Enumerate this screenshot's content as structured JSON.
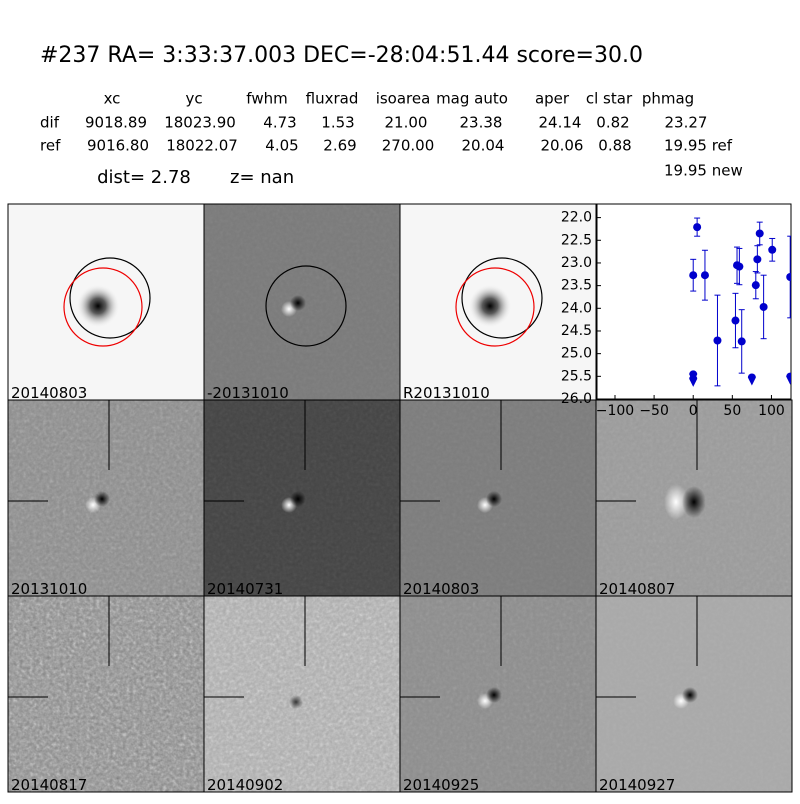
{
  "header": {
    "title": "#237   RA= 3:33:37.003 DEC=-28:04:51.44      score=30.0",
    "columns": [
      "xc",
      "yc",
      "fwhm",
      "fluxrad",
      "isoarea",
      "mag auto",
      "aper",
      "cl star",
      "phmag"
    ],
    "rows": [
      {
        "label": "dif",
        "cells": [
          "9018.89",
          "18023.90",
          "4.73",
          "1.53",
          "21.00",
          "23.38",
          "24.14",
          "0.82",
          "23.27"
        ]
      },
      {
        "label": "ref",
        "cells": [
          "9016.80",
          "18022.07",
          "4.05",
          "2.69",
          "270.00",
          "20.04",
          "20.06",
          "0.88",
          "19.95 ref"
        ]
      }
    ],
    "extra": "19.95 new",
    "dist": "dist=  2.78",
    "z": "z=   nan"
  },
  "panels": [
    {
      "label": "20140803"
    },
    {
      "label": "-20131010"
    },
    {
      "label": "R20131010"
    },
    {
      "label": "20131010"
    },
    {
      "label": "20140731"
    },
    {
      "label": "20140803",
      "color": "#ff0000"
    },
    {
      "label": "20140807"
    },
    {
      "label": "20140817"
    },
    {
      "label": "20140902"
    },
    {
      "label": "20140925"
    },
    {
      "label": "20140927"
    }
  ],
  "chart_data": {
    "type": "errorbar",
    "xlim": [
      -123,
      125
    ],
    "ylim": [
      21.7,
      26
    ],
    "y_inverted": true,
    "xticks": [
      {
        "value": -100,
        "label": "−100"
      },
      {
        "value": -50,
        "label": "−50"
      },
      0,
      50,
      100
    ],
    "yticks": [
      {
        "value": 22,
        "label": "22.0"
      },
      {
        "value": 22.5,
        "label": "22.5"
      },
      {
        "value": 23,
        "label": "23.0"
      },
      {
        "value": 23.5,
        "label": "23.5"
      },
      {
        "value": 24,
        "label": "24.0"
      },
      {
        "value": 24.5,
        "label": "24.5"
      },
      {
        "value": 25,
        "label": "25.0"
      },
      {
        "value": 25.5,
        "label": "25.5"
      },
      {
        "value": 26,
        "label": "26.0"
      }
    ],
    "color": "#0000cc",
    "detections": {
      "x": [
        0,
        5,
        15,
        31,
        54,
        56,
        59,
        62,
        80,
        82,
        85,
        90,
        101,
        124
      ],
      "values": [
        23.27,
        22.21,
        23.27,
        24.71,
        24.27,
        23.05,
        23.08,
        24.73,
        23.49,
        22.92,
        22.35,
        23.97,
        22.71,
        23.31
      ],
      "errors": [
        0.35,
        0.2,
        0.55,
        1.0,
        0.6,
        0.4,
        0.4,
        0.7,
        0.3,
        0.3,
        0.25,
        0.7,
        0.25,
        0.9
      ]
    },
    "upper_limits": {
      "x": [
        0,
        0,
        75,
        124
      ],
      "values": [
        25.5,
        25.6,
        25.57,
        25.55
      ]
    }
  }
}
